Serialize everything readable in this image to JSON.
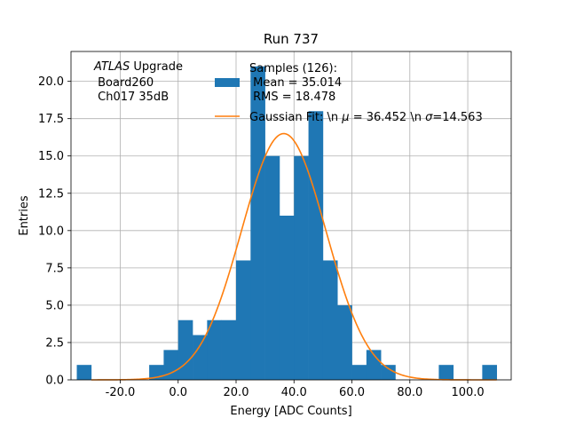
{
  "chart_data": {
    "type": "bar",
    "title": "Run 737",
    "xlabel": "Energy [ADC Counts]",
    "ylabel": "Entries",
    "xlim": [
      -37,
      115
    ],
    "ylim": [
      0,
      22
    ],
    "grid": true,
    "x_ticks": [
      -20,
      0,
      20,
      40,
      60,
      80,
      100
    ],
    "x_tick_labels": [
      "-20.0",
      "0.0",
      "20.0",
      "40.0",
      "60.0",
      "80.0",
      "100.0"
    ],
    "y_ticks": [
      0,
      2.5,
      5,
      7.5,
      10,
      12.5,
      15,
      17.5,
      20
    ],
    "y_tick_labels": [
      "0.0",
      "2.5",
      "5.0",
      "7.5",
      "10.0",
      "12.5",
      "15.0",
      "17.5",
      "20.0"
    ],
    "bin_width": 5,
    "bin_edges_start": -35,
    "values": [
      1,
      0,
      0,
      0,
      0,
      1,
      2,
      4,
      3,
      4,
      4,
      8,
      21,
      15,
      11,
      15,
      18,
      8,
      5,
      1,
      2,
      1,
      0,
      0,
      0,
      1,
      0,
      0,
      1
    ],
    "bar_color": "#1f77b4",
    "fit": {
      "mu": 36.452,
      "sigma": 14.563,
      "amplitude": 16.5,
      "color": "#ff7f0e"
    },
    "annotation": {
      "line1_italic": "ATLAS",
      "line1_rest": " Upgrade",
      "line2": " Board260",
      "line3": " Ch017 35dB"
    },
    "legend": {
      "placement": "top-right",
      "hist_label_line1": "Samples (126):",
      "hist_label_line2": " Mean = 35.014",
      "hist_label_line3": " RMS = 18.478",
      "fit_label_prefix": "Gaussian Fit: \\n ",
      "fit_label_mu_symbol": "μ",
      "fit_label_mid": " = 36.452 \\n ",
      "fit_label_sigma_symbol": "σ",
      "fit_label_suffix": "=14.563"
    }
  }
}
